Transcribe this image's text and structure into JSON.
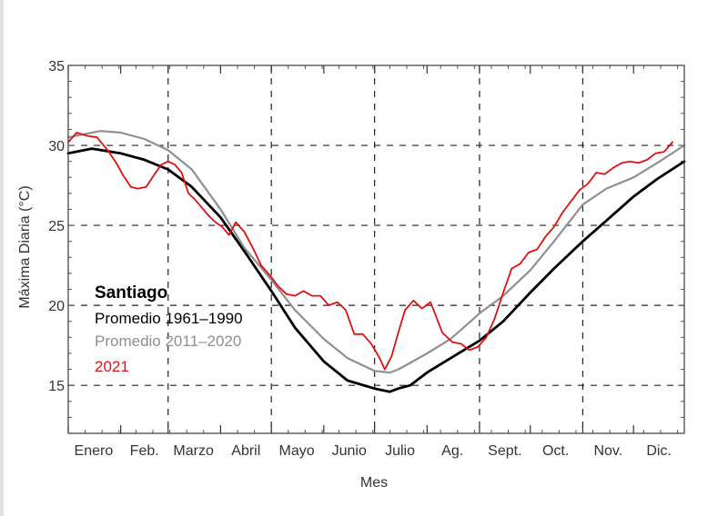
{
  "chart_data": {
    "type": "line",
    "title": "",
    "xlabel": "Mes",
    "ylabel": "Máxima Diaria   (°C)",
    "ylim": [
      12,
      35
    ],
    "yticks": [
      15,
      20,
      25,
      30,
      35
    ],
    "grid": true,
    "categories": [
      "Enero",
      "Feb.",
      "Marzo",
      "Abril",
      "Mayo",
      "Junio",
      "Julio",
      "Ag.",
      "Sept.",
      "Oct.",
      "Nov.",
      "Dic."
    ],
    "legend": {
      "title": "Santiago",
      "placement": "left-middle"
    },
    "series": [
      {
        "name": "Promedio 1961–1990",
        "color": "#000000",
        "x": [
          1,
          15,
          32,
          46,
          60,
          74,
          91,
          105,
          121,
          135,
          152,
          166,
          182,
          191,
          196,
          203,
          213,
          227,
          244,
          258,
          274,
          288,
          305,
          319,
          335,
          349,
          365
        ],
        "y": [
          29.5,
          29.8,
          29.5,
          29.1,
          28.5,
          27.4,
          25.5,
          23.4,
          20.9,
          18.6,
          16.5,
          15.3,
          14.8,
          14.6,
          14.8,
          15.0,
          15.8,
          16.7,
          17.8,
          19.0,
          20.8,
          22.3,
          24.0,
          25.3,
          26.8,
          27.9,
          29.0
        ]
      },
      {
        "name": "Promedio 2011–2020",
        "color": "#8f8f8f",
        "x": [
          1,
          20,
          32,
          46,
          60,
          74,
          91,
          105,
          121,
          135,
          152,
          166,
          182,
          191,
          196,
          203,
          213,
          227,
          244,
          258,
          274,
          288,
          305,
          319,
          335,
          349,
          365
        ],
        "y": [
          30.5,
          30.9,
          30.8,
          30.4,
          29.7,
          28.5,
          26.0,
          23.6,
          21.6,
          19.7,
          17.9,
          16.7,
          15.9,
          15.8,
          16.0,
          16.4,
          17.0,
          17.9,
          19.5,
          20.6,
          22.2,
          24.0,
          26.3,
          27.3,
          28.0,
          28.9,
          30.0
        ]
      },
      {
        "name": "2021",
        "color": "#e01010",
        "x": [
          1,
          6,
          12,
          18,
          25,
          30,
          33,
          38,
          42,
          47,
          52,
          56,
          60,
          64,
          68,
          72,
          76,
          80,
          84,
          88,
          92,
          96,
          100,
          105,
          110,
          115,
          120,
          125,
          130,
          135,
          140,
          145,
          150,
          155,
          160,
          165,
          170,
          175,
          180,
          185,
          188,
          192,
          196,
          200,
          205,
          210,
          215,
          218,
          222,
          228,
          233,
          238,
          243,
          248,
          253,
          258,
          263,
          268,
          273,
          278,
          283,
          288,
          293,
          298,
          303,
          308,
          313,
          318,
          323,
          328,
          333,
          338,
          343,
          348,
          353,
          358
        ],
        "y": [
          30.2,
          30.8,
          30.6,
          30.5,
          29.6,
          28.8,
          28.2,
          27.4,
          27.3,
          27.4,
          28.2,
          28.8,
          29.0,
          28.8,
          28.3,
          27.0,
          26.6,
          26.1,
          25.6,
          25.2,
          24.9,
          24.4,
          25.2,
          24.6,
          23.6,
          22.5,
          21.9,
          21.2,
          20.7,
          20.6,
          20.9,
          20.6,
          20.6,
          20.0,
          20.2,
          19.7,
          18.2,
          18.2,
          17.6,
          16.7,
          16.0,
          16.8,
          18.3,
          19.7,
          20.3,
          19.8,
          20.2,
          19.4,
          18.3,
          17.7,
          17.6,
          17.2,
          17.4,
          18.0,
          19.2,
          20.8,
          22.3,
          22.6,
          23.3,
          23.5,
          24.3,
          24.9,
          25.8,
          26.5,
          27.2,
          27.6,
          28.3,
          28.2,
          28.6,
          28.9,
          29.0,
          28.9,
          29.1,
          29.5,
          29.6,
          30.2
        ]
      }
    ]
  }
}
